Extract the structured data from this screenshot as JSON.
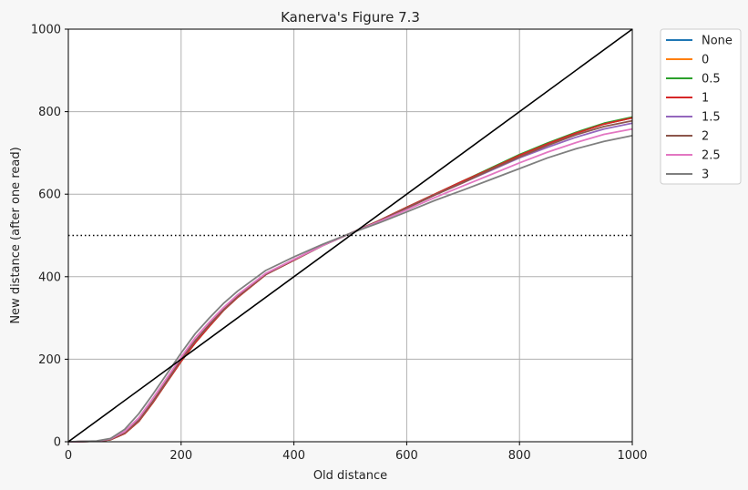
{
  "chart_data": {
    "type": "line",
    "title": "Kanerva's Figure 7.3",
    "xlabel": "Old distance",
    "ylabel": "New distance (after one read)",
    "xlim": [
      0,
      1000
    ],
    "ylim": [
      0,
      1000
    ],
    "xticks": [
      0,
      200,
      400,
      600,
      800,
      1000
    ],
    "yticks": [
      0,
      200,
      400,
      600,
      800,
      1000
    ],
    "grid": true,
    "legend_position": "outside-top-right",
    "x": [
      0,
      50,
      75,
      100,
      125,
      150,
      175,
      200,
      225,
      250,
      275,
      300,
      350,
      400,
      450,
      500,
      550,
      600,
      650,
      700,
      750,
      800,
      850,
      900,
      950,
      1000
    ],
    "series": [
      {
        "name": "None",
        "color": "#1f77b4",
        "values": [
          0,
          1,
          5,
          20,
          50,
          95,
          145,
          195,
          240,
          280,
          318,
          350,
          405,
          440,
          475,
          505,
          535,
          568,
          600,
          632,
          662,
          694,
          722,
          748,
          770,
          785
        ]
      },
      {
        "name": "0",
        "color": "#ff7f0e",
        "values": [
          0,
          1,
          5,
          20,
          50,
          95,
          145,
          195,
          240,
          280,
          318,
          350,
          405,
          440,
          475,
          505,
          535,
          568,
          600,
          632,
          662,
          694,
          722,
          748,
          770,
          785
        ]
      },
      {
        "name": "0.5",
        "color": "#2ca02c",
        "values": [
          0,
          1,
          5,
          20,
          50,
          95,
          145,
          195,
          240,
          280,
          318,
          350,
          405,
          440,
          475,
          505,
          535,
          568,
          600,
          632,
          664,
          696,
          724,
          750,
          772,
          787
        ]
      },
      {
        "name": "1",
        "color": "#d62728",
        "values": [
          0,
          1,
          5,
          20,
          50,
          95,
          145,
          195,
          240,
          280,
          318,
          350,
          405,
          440,
          475,
          505,
          535,
          568,
          600,
          632,
          662,
          694,
          722,
          748,
          770,
          785
        ]
      },
      {
        "name": "1.5",
        "color": "#9467bd",
        "values": [
          0,
          1,
          6,
          22,
          52,
          98,
          148,
          200,
          245,
          284,
          320,
          352,
          406,
          441,
          475,
          505,
          534,
          566,
          598,
          628,
          658,
          688,
          714,
          738,
          758,
          772
        ]
      },
      {
        "name": "2",
        "color": "#8c564b",
        "values": [
          0,
          1,
          6,
          22,
          52,
          98,
          148,
          200,
          245,
          284,
          320,
          352,
          406,
          441,
          475,
          505,
          534,
          566,
          598,
          628,
          660,
          690,
          718,
          744,
          764,
          778
        ]
      },
      {
        "name": "2.5",
        "color": "#e377c2",
        "values": [
          0,
          1,
          7,
          25,
          58,
          105,
          155,
          205,
          252,
          290,
          325,
          356,
          408,
          442,
          475,
          505,
          533,
          562,
          592,
          620,
          648,
          676,
          702,
          725,
          745,
          758
        ]
      },
      {
        "name": "3",
        "color": "#7f7f7f",
        "values": [
          0,
          2,
          8,
          30,
          68,
          115,
          165,
          215,
          262,
          300,
          335,
          365,
          415,
          448,
          478,
          505,
          530,
          557,
          585,
          610,
          636,
          662,
          688,
          710,
          728,
          742
        ]
      }
    ],
    "reference_lines": [
      {
        "kind": "diagonal",
        "color": "#000000",
        "from": [
          0,
          0
        ],
        "to": [
          1000,
          1000
        ]
      },
      {
        "kind": "horizontal-dotted",
        "color": "#000000",
        "y": 500
      }
    ]
  }
}
